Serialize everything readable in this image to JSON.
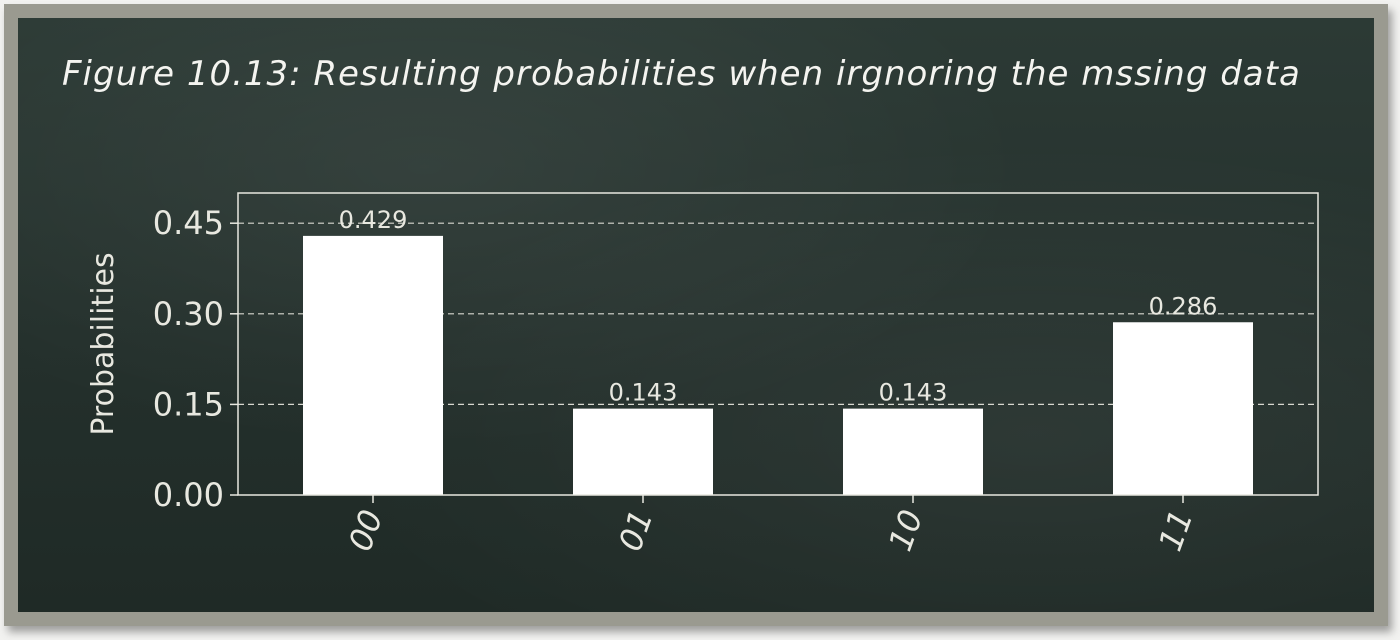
{
  "title": "Figure 10.13: Resulting probabilities when irgnoring the mssing data",
  "colors": {
    "bar": "#ffffff",
    "axis": "#e8e8e0",
    "grid": "#d8d8d0",
    "board": "#26322e"
  },
  "chart_data": {
    "type": "bar",
    "categories": [
      "00",
      "01",
      "10",
      "11"
    ],
    "values": [
      0.429,
      0.143,
      0.143,
      0.286
    ],
    "value_labels": [
      "0.429",
      "0.143",
      "0.143",
      "0.286"
    ],
    "ylabel": "Probabilities",
    "xlabel": "",
    "ylim": [
      0,
      0.5
    ],
    "yticks": [
      0.0,
      0.15,
      0.3,
      0.45
    ],
    "ytick_labels": [
      "0.00",
      "0.15",
      "0.30",
      "0.45"
    ],
    "grid": "horizontal dashed",
    "xtick_rotation": "70 degrees"
  }
}
